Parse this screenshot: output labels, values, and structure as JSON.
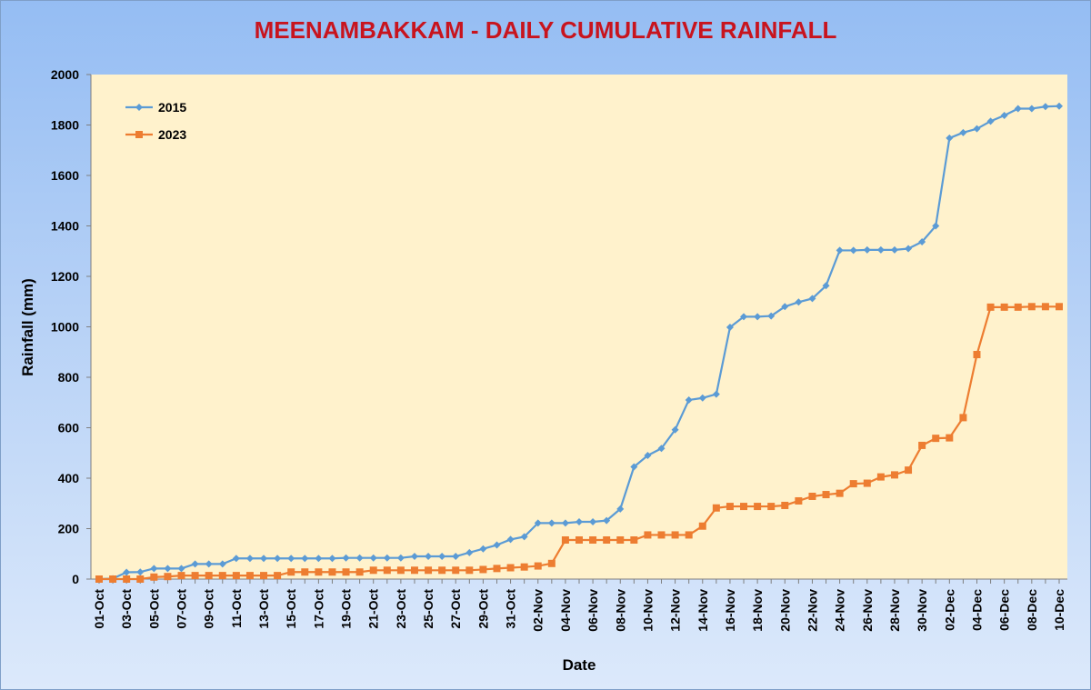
{
  "chart_data": {
    "type": "line",
    "title": "MEENAMBAKKAM - DAILY CUMULATIVE RAINFALL",
    "xlabel": "Date",
    "ylabel": "Rainfall (mm)",
    "ylim": [
      0,
      2000
    ],
    "yticks": [
      0,
      200,
      400,
      600,
      800,
      1000,
      1200,
      1400,
      1600,
      1800,
      2000
    ],
    "grid": false,
    "legend_position": "top-left",
    "x": [
      "01-Oct",
      "02-Oct",
      "03-Oct",
      "04-Oct",
      "05-Oct",
      "06-Oct",
      "07-Oct",
      "08-Oct",
      "09-Oct",
      "10-Oct",
      "11-Oct",
      "12-Oct",
      "13-Oct",
      "14-Oct",
      "15-Oct",
      "16-Oct",
      "17-Oct",
      "18-Oct",
      "19-Oct",
      "20-Oct",
      "21-Oct",
      "22-Oct",
      "23-Oct",
      "24-Oct",
      "25-Oct",
      "26-Oct",
      "27-Oct",
      "28-Oct",
      "29-Oct",
      "30-Oct",
      "31-Oct",
      "01-Nov",
      "02-Nov",
      "03-Nov",
      "04-Nov",
      "05-Nov",
      "06-Nov",
      "07-Nov",
      "08-Nov",
      "09-Nov",
      "10-Nov",
      "11-Nov",
      "12-Nov",
      "13-Nov",
      "14-Nov",
      "15-Nov",
      "16-Nov",
      "17-Nov",
      "18-Nov",
      "19-Nov",
      "20-Nov",
      "21-Nov",
      "22-Nov",
      "23-Nov",
      "24-Nov",
      "25-Nov",
      "26-Nov",
      "27-Nov",
      "28-Nov",
      "29-Nov",
      "30-Nov",
      "01-Dec",
      "02-Dec",
      "03-Dec",
      "04-Dec",
      "05-Dec",
      "06-Dec",
      "07-Dec",
      "08-Dec",
      "09-Dec",
      "10-Dec"
    ],
    "tick_labels": [
      "01-Oct",
      "03-Oct",
      "05-Oct",
      "07-Oct",
      "09-Oct",
      "11-Oct",
      "13-Oct",
      "15-Oct",
      "17-Oct",
      "19-Oct",
      "21-Oct",
      "23-Oct",
      "25-Oct",
      "27-Oct",
      "29-Oct",
      "31-Oct",
      "02-Nov",
      "04-Nov",
      "06-Nov",
      "08-Nov",
      "10-Nov",
      "12-Nov",
      "14-Nov",
      "16-Nov",
      "18-Nov",
      "20-Nov",
      "22-Nov",
      "24-Nov",
      "26-Nov",
      "28-Nov",
      "30-Nov",
      "02-Dec",
      "04-Dec",
      "06-Dec",
      "08-Dec",
      "10-Dec"
    ],
    "series": [
      {
        "name": "2015",
        "color": "#5b9bd5",
        "marker": "diamond",
        "values": [
          0,
          2,
          27,
          28,
          42,
          42,
          42,
          60,
          60,
          60,
          82,
          82,
          82,
          82,
          82,
          82,
          82,
          82,
          84,
          84,
          84,
          84,
          84,
          90,
          90,
          90,
          90,
          105,
          120,
          135,
          157,
          168,
          222,
          222,
          222,
          227,
          227,
          232,
          278,
          445,
          490,
          518,
          592,
          710,
          718,
          733,
          998,
          1040,
          1040,
          1043,
          1080,
          1098,
          1112,
          1163,
          1303,
          1303,
          1305,
          1305,
          1305,
          1310,
          1337,
          1400,
          1748,
          1770,
          1785,
          1815,
          1838,
          1865,
          1865,
          1873,
          1875
        ]
      },
      {
        "name": "2023",
        "color": "#ed7d31",
        "marker": "square",
        "values": [
          0,
          0,
          0,
          0,
          8,
          10,
          14,
          14,
          14,
          14,
          14,
          14,
          14,
          14,
          28,
          28,
          28,
          28,
          28,
          28,
          35,
          35,
          35,
          35,
          35,
          35,
          35,
          35,
          38,
          42,
          45,
          48,
          52,
          62,
          155,
          155,
          155,
          155,
          155,
          155,
          175,
          175,
          175,
          175,
          210,
          282,
          288,
          288,
          288,
          288,
          292,
          310,
          328,
          335,
          340,
          378,
          380,
          405,
          413,
          432,
          530,
          558,
          560,
          640,
          890,
          1078,
          1078,
          1078,
          1080,
          1080,
          1080
        ]
      }
    ]
  }
}
